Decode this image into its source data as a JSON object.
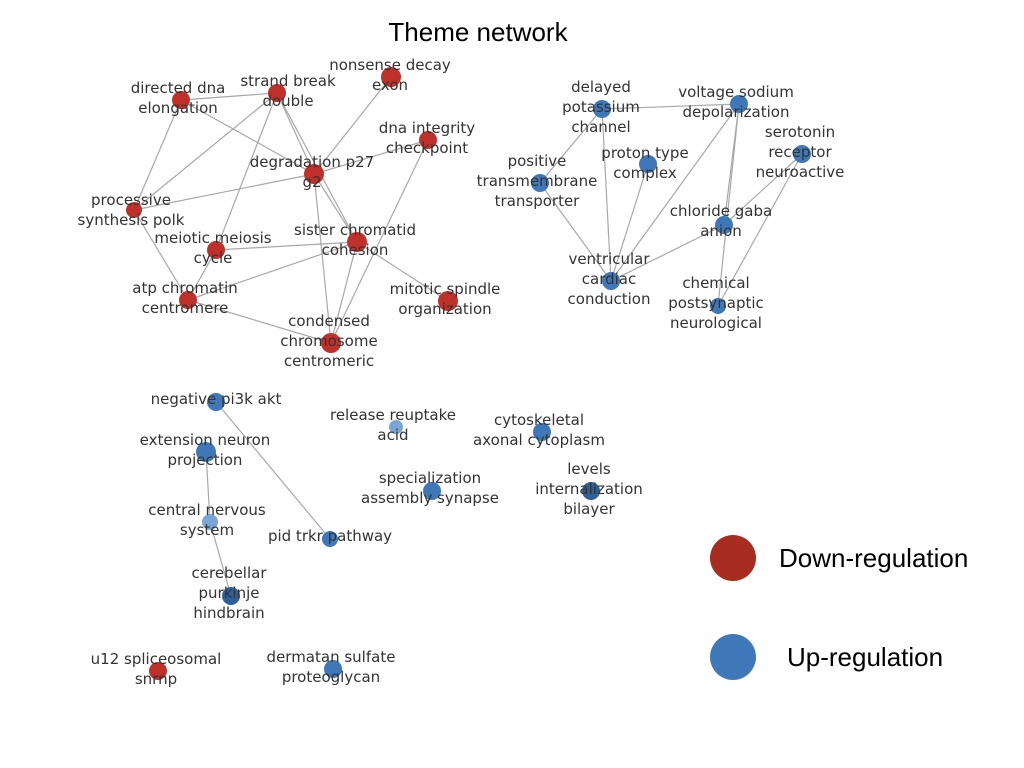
{
  "title": "Theme network",
  "colors": {
    "down": "#c0302b",
    "up": "#3e78b8",
    "up_light": "#7aa6d6",
    "up_dark": "#2f5f99",
    "edge": "#a8a8a8",
    "legend_down": "#a82c1f",
    "legend_up": "#3e78b8"
  },
  "legend": [
    {
      "key": "down",
      "label": "Down-regulation"
    },
    {
      "key": "up",
      "label": "Up-regulation"
    }
  ],
  "nodes": [
    {
      "id": "n1",
      "lines": [
        "directed dna",
        "elongation"
      ],
      "reg": "down"
    },
    {
      "id": "n2",
      "lines": [
        "strand break",
        "double"
      ],
      "reg": "down"
    },
    {
      "id": "n3",
      "lines": [
        "nonsense decay",
        "exon"
      ],
      "reg": "down"
    },
    {
      "id": "n4",
      "lines": [
        "dna integrity",
        "checkpoint"
      ],
      "reg": "down"
    },
    {
      "id": "n5",
      "lines": [
        "degradation p27",
        "g2"
      ],
      "reg": "down"
    },
    {
      "id": "n6",
      "lines": [
        "processive",
        "synthesis polk"
      ],
      "reg": "down"
    },
    {
      "id": "n7",
      "lines": [
        "sister chromatid",
        "cohesion"
      ],
      "reg": "down"
    },
    {
      "id": "n8",
      "lines": [
        "meiotic meiosis",
        "cycle"
      ],
      "reg": "down"
    },
    {
      "id": "n9",
      "lines": [
        "atp chromatin",
        "centromere"
      ],
      "reg": "down"
    },
    {
      "id": "n10",
      "lines": [
        "mitotic spindle",
        "organization"
      ],
      "reg": "down"
    },
    {
      "id": "n11",
      "lines": [
        "condensed",
        "chromosome",
        "centromeric"
      ],
      "reg": "down"
    },
    {
      "id": "n12",
      "lines": [
        "delayed",
        "potassium",
        "channel"
      ],
      "reg": "up"
    },
    {
      "id": "n13",
      "lines": [
        "voltage sodium",
        "depolarization"
      ],
      "reg": "up"
    },
    {
      "id": "n14",
      "lines": [
        "serotonin",
        "receptor",
        "neuroactive"
      ],
      "reg": "up"
    },
    {
      "id": "n15",
      "lines": [
        "positive",
        "transmembrane",
        "transporter"
      ],
      "reg": "up"
    },
    {
      "id": "n16",
      "lines": [
        "proton type",
        "complex"
      ],
      "reg": "up"
    },
    {
      "id": "n17",
      "lines": [
        "chloride gaba",
        "anion"
      ],
      "reg": "up"
    },
    {
      "id": "n18",
      "lines": [
        "ventricular",
        "cardiac",
        "conduction"
      ],
      "reg": "up"
    },
    {
      "id": "n19",
      "lines": [
        "chemical",
        "postsynaptic",
        "neurological"
      ],
      "reg": "up"
    },
    {
      "id": "n20",
      "lines": [
        "negative pi3k akt"
      ],
      "reg": "up"
    },
    {
      "id": "n21",
      "lines": [
        "extension neuron",
        "projection"
      ],
      "reg": "up"
    },
    {
      "id": "n22",
      "lines": [
        "central nervous",
        "system"
      ],
      "reg": "up"
    },
    {
      "id": "n23",
      "lines": [
        "pid trkr pathway"
      ],
      "reg": "up"
    },
    {
      "id": "n24",
      "lines": [
        "cerebellar",
        "purkinje",
        "hindbrain"
      ],
      "reg": "up"
    },
    {
      "id": "n25",
      "lines": [
        "release reuptake",
        "acid"
      ],
      "reg": "up"
    },
    {
      "id": "n26",
      "lines": [
        "cytoskeletal",
        "axonal cytoplasm"
      ],
      "reg": "up"
    },
    {
      "id": "n27",
      "lines": [
        "specialization",
        "assembly synapse"
      ],
      "reg": "up"
    },
    {
      "id": "n28",
      "lines": [
        "levels",
        "internalization",
        "bilayer"
      ],
      "reg": "up"
    },
    {
      "id": "n29",
      "lines": [
        "u12 spliceosomal",
        "snrnp"
      ],
      "reg": "down"
    },
    {
      "id": "n30",
      "lines": [
        "dermatan sulfate",
        "proteoglycan"
      ],
      "reg": "up"
    }
  ],
  "edges": [
    [
      "n1",
      "n2"
    ],
    [
      "n1",
      "n5"
    ],
    [
      "n1",
      "n6"
    ],
    [
      "n2",
      "n5"
    ],
    [
      "n2",
      "n6"
    ],
    [
      "n2",
      "n8"
    ],
    [
      "n2",
      "n7"
    ],
    [
      "n3",
      "n5"
    ],
    [
      "n4",
      "n5"
    ],
    [
      "n4",
      "n11"
    ],
    [
      "n5",
      "n6"
    ],
    [
      "n5",
      "n7"
    ],
    [
      "n5",
      "n11"
    ],
    [
      "n6",
      "n9"
    ],
    [
      "n7",
      "n8"
    ],
    [
      "n7",
      "n9"
    ],
    [
      "n7",
      "n10"
    ],
    [
      "n7",
      "n11"
    ],
    [
      "n8",
      "n9"
    ],
    [
      "n9",
      "n11"
    ],
    [
      "n12",
      "n13"
    ],
    [
      "n12",
      "n15"
    ],
    [
      "n12",
      "n18"
    ],
    [
      "n13",
      "n18"
    ],
    [
      "n13",
      "n17"
    ],
    [
      "n13",
      "n19"
    ],
    [
      "n14",
      "n17"
    ],
    [
      "n14",
      "n19"
    ],
    [
      "n15",
      "n18"
    ],
    [
      "n16",
      "n18"
    ],
    [
      "n17",
      "n18"
    ],
    [
      "n20",
      "n23"
    ],
    [
      "n21",
      "n22"
    ],
    [
      "n22",
      "n24"
    ]
  ]
}
